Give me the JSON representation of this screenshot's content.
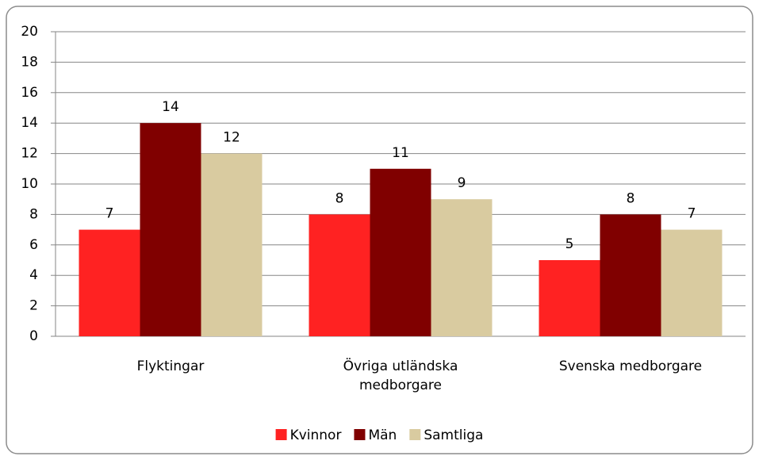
{
  "chart_data": {
    "type": "bar",
    "categories": [
      "Flyktingar",
      "Övriga utländska medborgare",
      "Svenska medborgare"
    ],
    "series": [
      {
        "name": "Kvinnor",
        "color": "#ff2222",
        "values": [
          7,
          8,
          5
        ]
      },
      {
        "name": "Män",
        "color": "#800000",
        "values": [
          14,
          11,
          8
        ]
      },
      {
        "name": "Samtliga",
        "color": "#d9cba0",
        "values": [
          12,
          9,
          7
        ]
      }
    ],
    "ylim": [
      0,
      20
    ],
    "yticks": [
      0,
      2,
      4,
      6,
      8,
      10,
      12,
      14,
      16,
      18,
      20
    ],
    "grid": true,
    "legend": "bottom"
  }
}
